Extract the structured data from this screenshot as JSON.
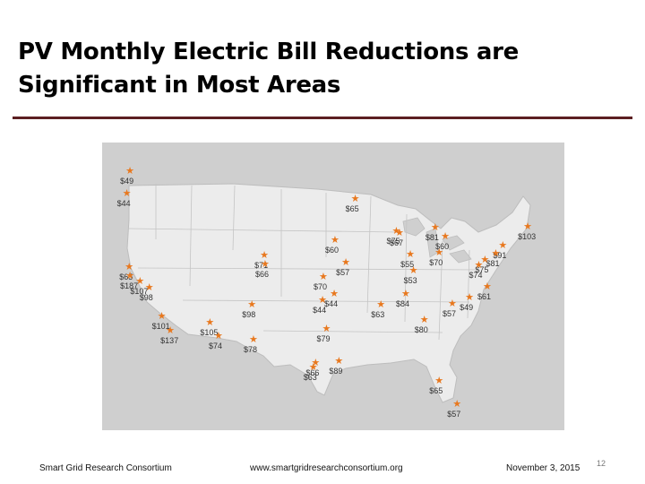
{
  "slide": {
    "title": "PV Monthly Electric Bill Reductions are Significant in Most Areas",
    "page_number": "12"
  },
  "footer": {
    "org": "Smart Grid Research Consortium",
    "url": "www.smartgridresearchconsortium.org",
    "date": "November 3, 2015"
  },
  "map": {
    "marker_color": "#e8781e",
    "markers": [
      {
        "label": "$49",
        "lon": -122.3,
        "lat": 47.6
      },
      {
        "label": "$44",
        "lon": -122.7,
        "lat": 45.5
      },
      {
        "label": "$65",
        "lon": -122.4,
        "lat": 38.6
      },
      {
        "label": "$187",
        "lon": -122.3,
        "lat": 37.8
      },
      {
        "label": "$107",
        "lon": -121.0,
        "lat": 37.3
      },
      {
        "label": "$98",
        "lon": -119.8,
        "lat": 36.7
      },
      {
        "label": "$101",
        "lon": -118.2,
        "lat": 34.0
      },
      {
        "label": "$137",
        "lon": -117.1,
        "lat": 32.7
      },
      {
        "label": "$105",
        "lon": -112.0,
        "lat": 33.4
      },
      {
        "label": "$74",
        "lon": -110.9,
        "lat": 32.2
      },
      {
        "label": "$71",
        "lon": -105.0,
        "lat": 39.7
      },
      {
        "label": "$66",
        "lon": -104.9,
        "lat": 38.9
      },
      {
        "label": "$98",
        "lon": -106.6,
        "lat": 35.1
      },
      {
        "label": "$78",
        "lon": -106.4,
        "lat": 31.8
      },
      {
        "label": "$65",
        "lon": -93.3,
        "lat": 45.0
      },
      {
        "label": "$60",
        "lon": -95.9,
        "lat": 41.2
      },
      {
        "label": "$57",
        "lon": -94.5,
        "lat": 39.1
      },
      {
        "label": "$70",
        "lon": -97.4,
        "lat": 37.7
      },
      {
        "label": "$44",
        "lon": -97.5,
        "lat": 35.5
      },
      {
        "label": "$44",
        "lon": -96.0,
        "lat": 36.1
      },
      {
        "label": "$79",
        "lon": -97.0,
        "lat": 32.8
      },
      {
        "label": "$66",
        "lon": -98.4,
        "lat": 29.6
      },
      {
        "label": "$63",
        "lon": -98.7,
        "lat": 29.2
      },
      {
        "label": "$89",
        "lon": -95.4,
        "lat": 29.8
      },
      {
        "label": "$75",
        "lon": -88.0,
        "lat": 42.0
      },
      {
        "label": "$67",
        "lon": -87.6,
        "lat": 41.8
      },
      {
        "label": "$81",
        "lon": -83.0,
        "lat": 42.3
      },
      {
        "label": "$60",
        "lon": -81.7,
        "lat": 41.5
      },
      {
        "label": "$55",
        "lon": -86.2,
        "lat": 39.8
      },
      {
        "label": "$53",
        "lon": -85.8,
        "lat": 38.3
      },
      {
        "label": "$70",
        "lon": -82.5,
        "lat": 40.0
      },
      {
        "label": "$84",
        "lon": -86.8,
        "lat": 36.1
      },
      {
        "label": "$63",
        "lon": -90.0,
        "lat": 35.1
      },
      {
        "label": "$80",
        "lon": -84.4,
        "lat": 33.7
      },
      {
        "label": "$57",
        "lon": -80.8,
        "lat": 35.2
      },
      {
        "label": "$49",
        "lon": -78.6,
        "lat": 35.8
      },
      {
        "label": "$61",
        "lon": -76.3,
        "lat": 36.8
      },
      {
        "label": "$103",
        "lon": -71.1,
        "lat": 42.4
      },
      {
        "label": "$91",
        "lon": -74.3,
        "lat": 40.7
      },
      {
        "label": "$81",
        "lon": -75.2,
        "lat": 39.9
      },
      {
        "label": "$75",
        "lon": -76.6,
        "lat": 39.3
      },
      {
        "label": "$74",
        "lon": -77.4,
        "lat": 38.8
      },
      {
        "label": "$65",
        "lon": -82.5,
        "lat": 28.0
      },
      {
        "label": "$57",
        "lon": -80.2,
        "lat": 25.8
      }
    ]
  }
}
